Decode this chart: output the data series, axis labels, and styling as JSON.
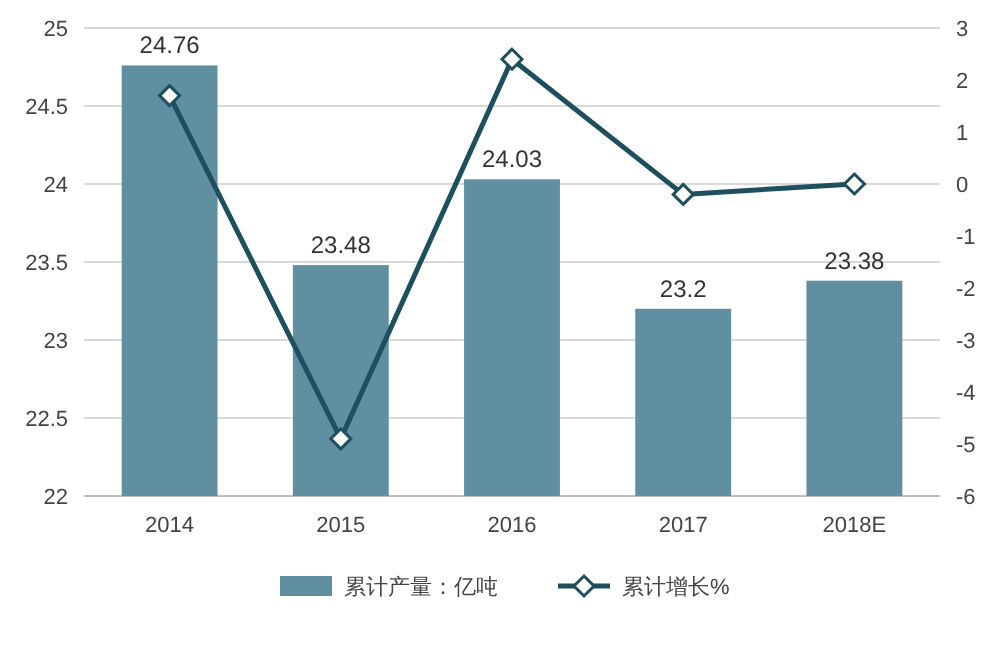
{
  "chart_data": {
    "type": "bar",
    "categories": [
      "2014",
      "2015",
      "2016",
      "2017",
      "2018E"
    ],
    "series": [
      {
        "name": "累计产量：亿吨",
        "color": "#5f8fa0",
        "values": [
          24.76,
          23.48,
          24.03,
          23.2,
          23.38
        ],
        "value_labels": [
          "24.76",
          "23.48",
          "24.03",
          "23.2",
          "23.38"
        ]
      },
      {
        "name": "累计增长%",
        "type": "line",
        "axis": "y2",
        "color": "#1e4f5f",
        "marker": "diamond",
        "values": [
          1.7,
          -4.9,
          2.4,
          -0.2,
          0.0
        ]
      }
    ],
    "ylim": [
      22,
      25
    ],
    "yticks": [
      22,
      22.5,
      23,
      23.5,
      24,
      24.5,
      25
    ],
    "y2lim": [
      -6,
      3
    ],
    "y2ticks": [
      -6,
      -5,
      -4,
      -3,
      -2,
      -1,
      0,
      1,
      2,
      3
    ],
    "grid": "y",
    "legend": "bottom"
  }
}
